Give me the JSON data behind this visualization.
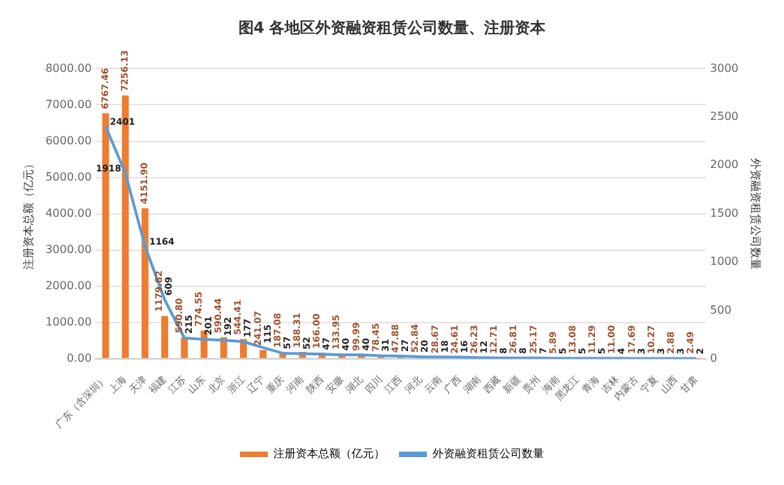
{
  "chart_data": {
    "type": "bar",
    "title": "图4 各地区外资融资租赁公司数量、注册资本",
    "ylabel": "注册资本总额（亿元）",
    "y2label": "外资融资租赁公司数量",
    "categories": [
      "广东（含深圳）",
      "上海",
      "天津",
      "福建",
      "江苏",
      "山东",
      "北京",
      "浙江",
      "辽宁",
      "重庆",
      "河南",
      "陕西",
      "安徽",
      "湖北",
      "四川",
      "江西",
      "河北",
      "云南",
      "广西",
      "湖南",
      "西藏",
      "新疆",
      "贵州",
      "海南",
      "黑龙江",
      "青海",
      "吉林",
      "内蒙古",
      "宁夏",
      "山西",
      "甘肃"
    ],
    "series": [
      {
        "name": "注册资本总额（亿元）",
        "color": "#ed7d31",
        "values": [
          6767.46,
          7256.13,
          4151.9,
          1179.82,
          590.8,
          774.55,
          590.44,
          544.41,
          241.07,
          187.08,
          188.31,
          166,
          133.95,
          99.99,
          78.45,
          47.88,
          52.84,
          28.67,
          24.61,
          26.23,
          12.71,
          26.81,
          25.17,
          5.89,
          13.08,
          11.29,
          11,
          17.69,
          10.27,
          2.88,
          2.49
        ],
        "value_labels": [
          "6767.46",
          "7256.13",
          "4151.90",
          "1179.82",
          "590.80",
          "774.55",
          "590.44",
          "544.41",
          "241.07",
          "187.08",
          "188.31",
          "166.00",
          "133.95",
          "99.99",
          "78.45",
          "47.88",
          "52.84",
          "28.67",
          "24.61",
          "26.23",
          "12.71",
          "26.81",
          "25.17",
          "5.89",
          "13.08",
          "11.29",
          "11.00",
          "17.69",
          "10.27",
          "2.88",
          "2.49"
        ]
      },
      {
        "name": "外资融资租赁公司数量",
        "type": "line",
        "axis": "y2",
        "color": "#5b9bd5",
        "values": [
          2401,
          1918,
          1164,
          609,
          215,
          201,
          192,
          177,
          115,
          57,
          52,
          47,
          40,
          40,
          31,
          27,
          20,
          18,
          16,
          12,
          8,
          8,
          7,
          5,
          5,
          5,
          4,
          3,
          3,
          3,
          2
        ],
        "value_labels": [
          "2401",
          "1918",
          "1164",
          "609",
          "215",
          "201",
          "192",
          "177",
          "115",
          "57",
          "52",
          "47",
          "40",
          "40",
          "31",
          "27",
          "20",
          "18",
          "16",
          "12",
          "8",
          "8",
          "7",
          "5",
          "5",
          "5",
          "4",
          "3",
          "3",
          "3",
          "2"
        ]
      }
    ],
    "ylim": [
      0,
      8000
    ],
    "yticks": [
      {
        "value": 0,
        "label": "0.00"
      },
      {
        "value": 1000,
        "label": "1000.00"
      },
      {
        "value": 2000,
        "label": "2000.00"
      },
      {
        "value": 3000,
        "label": "3000.00"
      },
      {
        "value": 4000,
        "label": "4000.00"
      },
      {
        "value": 5000,
        "label": "5000.00"
      },
      {
        "value": 6000,
        "label": "6000.00"
      },
      {
        "value": 7000,
        "label": "7000.00"
      },
      {
        "value": 8000,
        "label": "8000.00"
      }
    ],
    "y2lim": [
      0,
      3000
    ],
    "y2ticks": [
      0,
      500,
      1000,
      1500,
      2000,
      2500,
      3000
    ],
    "grid": "y",
    "legend": "bottom",
    "marker": "none",
    "line_style": "solid"
  }
}
